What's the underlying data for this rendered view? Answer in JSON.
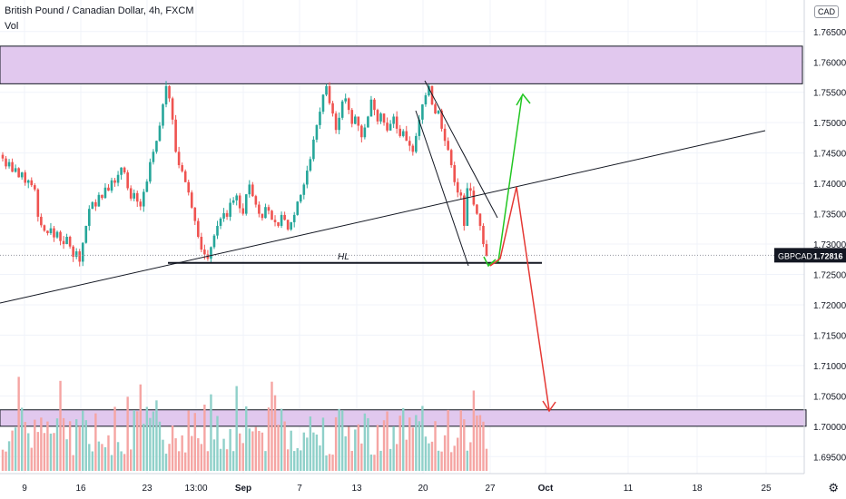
{
  "header": {
    "title": "British Pound / Canadian Dollar, 4h, FXCM",
    "indicator": "Vol",
    "currency_badge": "CAD"
  },
  "icons": {
    "settings": "gear-icon"
  },
  "colors": {
    "zone_fill": "#e1c8ee",
    "zone_stroke": "#131722",
    "candle_up": "#26a69a",
    "candle_down": "#ef5350",
    "vol_up": "#8fd0c9",
    "vol_down": "#f5a5a3",
    "arrow_up": "#22c622",
    "arrow_down": "#e53935",
    "price_badge_bg": "#131722"
  },
  "chart_data": {
    "type": "candlestick",
    "symbol": "GBPCAD",
    "timeframe": "4h",
    "last_price": "1.72816",
    "price_label": "GBPCAD",
    "y_ticks": [
      "1.76500",
      "1.76000",
      "1.75500",
      "1.75000",
      "1.74500",
      "1.74000",
      "1.73500",
      "1.73000",
      "1.72500",
      "1.72000",
      "1.71500",
      "1.71000",
      "1.70500",
      "1.70000",
      "1.69500"
    ],
    "x_ticks": [
      "9",
      "16",
      "23",
      "13:00",
      "Sep",
      "7",
      "13",
      "20",
      "27",
      "Oct",
      "11",
      "18",
      "25"
    ],
    "ylim": [
      1.6922,
      1.7702
    ],
    "resistance_zone": [
      1.7564,
      1.7626
    ],
    "target_zone": [
      1.7,
      1.7027
    ],
    "horizontal_level": 1.7269,
    "horizontal_level_label": "HL",
    "close_series": [
      1.7441,
      1.7428,
      1.7435,
      1.7419,
      1.7425,
      1.741,
      1.7418,
      1.7401,
      1.7405,
      1.7397,
      1.739,
      1.7345,
      1.7331,
      1.7322,
      1.7318,
      1.7326,
      1.7311,
      1.732,
      1.7305,
      1.73,
      1.7312,
      1.7296,
      1.7279,
      1.7288,
      1.7271,
      1.7302,
      1.733,
      1.7358,
      1.7369,
      1.7362,
      1.7381,
      1.7376,
      1.7393,
      1.7388,
      1.7405,
      1.7401,
      1.7414,
      1.7426,
      1.7418,
      1.7392,
      1.7375,
      1.7384,
      1.737,
      1.7362,
      1.7386,
      1.7403,
      1.7435,
      1.7452,
      1.747,
      1.7495,
      1.753,
      1.756,
      1.754,
      1.7505,
      1.7452,
      1.743,
      1.742,
      1.7402,
      1.7385,
      1.736,
      1.7338,
      1.7312,
      1.7291,
      1.7283,
      1.7276,
      1.7295,
      1.7314,
      1.733,
      1.7342,
      1.7351,
      1.7345,
      1.7368,
      1.7372,
      1.738,
      1.7359,
      1.735,
      1.7382,
      1.7398,
      1.7379,
      1.7365,
      1.735,
      1.7343,
      1.7361,
      1.7355,
      1.734,
      1.7336,
      1.733,
      1.7348,
      1.734,
      1.7324,
      1.7336,
      1.7348,
      1.737,
      1.7381,
      1.7398,
      1.7421,
      1.744,
      1.7472,
      1.7496,
      1.7518,
      1.7546,
      1.756,
      1.7532,
      1.7515,
      1.7488,
      1.7508,
      1.7535,
      1.754,
      1.7521,
      1.7498,
      1.751,
      1.7495,
      1.7476,
      1.7492,
      1.751,
      1.7538,
      1.7521,
      1.7502,
      1.7515,
      1.75,
      1.7487,
      1.7498,
      1.751,
      1.749,
      1.7478,
      1.7486,
      1.747,
      1.7462,
      1.7452,
      1.7478,
      1.7505,
      1.753,
      1.7545,
      1.756,
      1.753,
      1.7515,
      1.752,
      1.749,
      1.747,
      1.7455,
      1.743,
      1.7402,
      1.7385,
      1.738,
      1.733,
      1.7392,
      1.7388,
      1.7365,
      1.735,
      1.733,
      1.73,
      1.7281
    ]
  }
}
